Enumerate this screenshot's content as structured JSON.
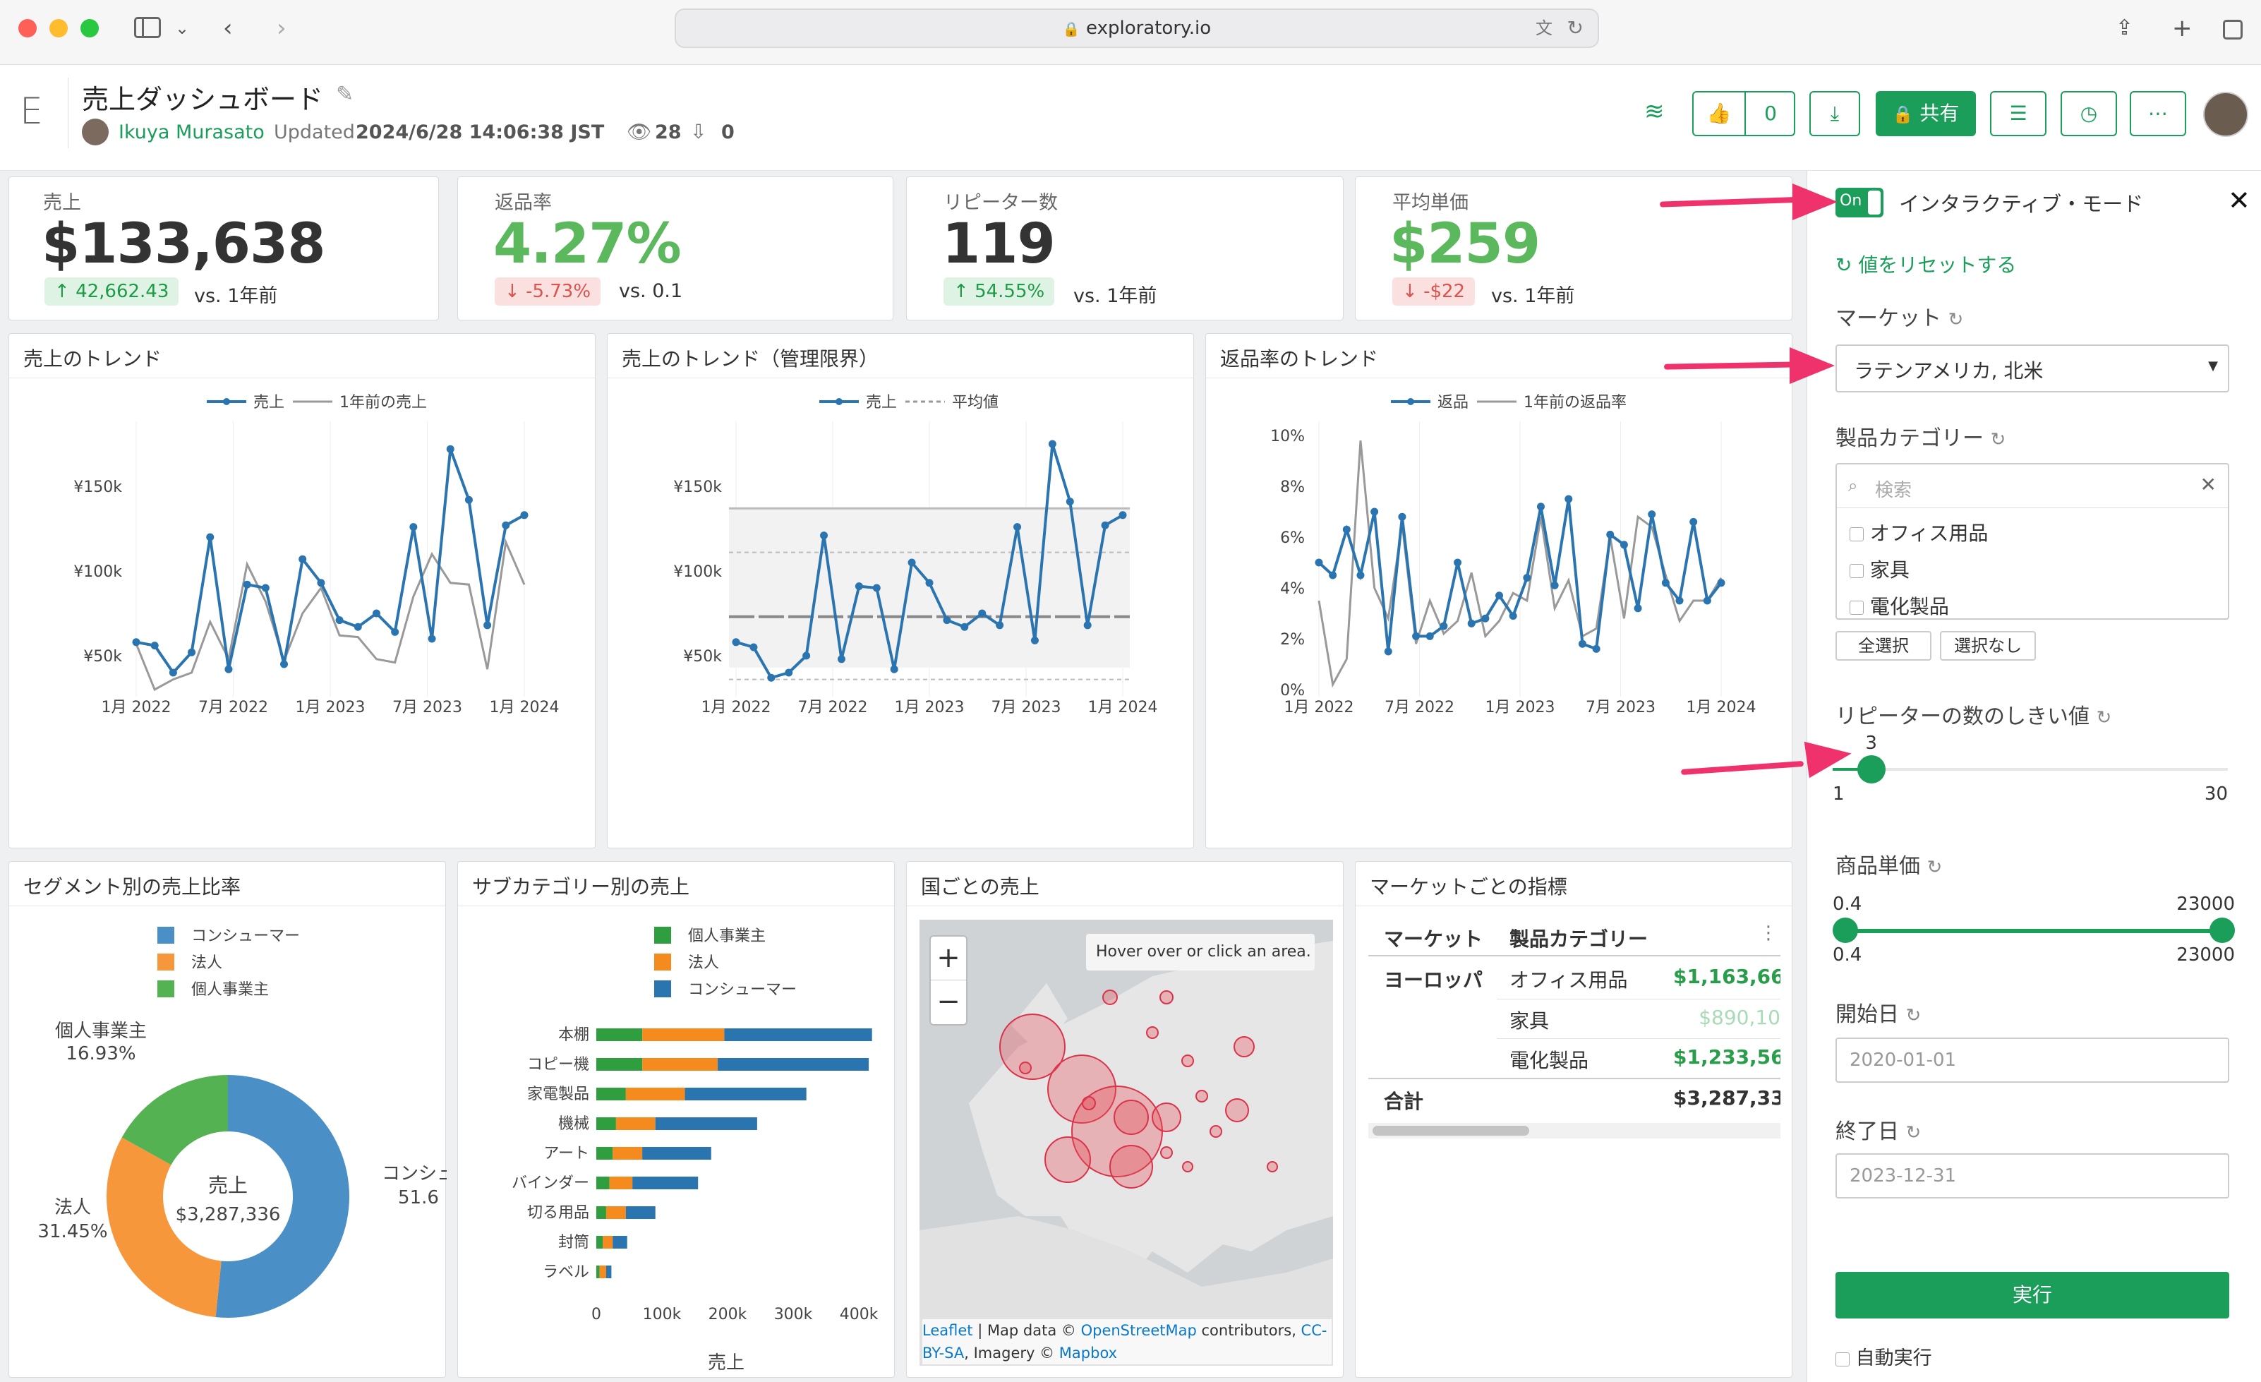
{
  "browser": {
    "url": "exploratory.io"
  },
  "header": {
    "logo": "E",
    "title": "売上ダッシュボード",
    "author": "Ikuya Murasato",
    "updated_label": "Updated",
    "updated_value": "2024/6/28 14:06:38 JST",
    "views": "28",
    "downloads": "0",
    "likes": "0",
    "share_label": "共有",
    "accent": "#1a9e5a"
  },
  "kpis": [
    {
      "label": "売上",
      "value": "$133,638",
      "delta": "42,662.43",
      "direction": "up",
      "vs": "vs. 1年前",
      "color": "#333333"
    },
    {
      "label": "返品率",
      "value": "4.27%",
      "delta": "-5.73%",
      "direction": "down",
      "vs": "vs. 0.1",
      "color": "#5cb85c"
    },
    {
      "label": "リピーター数",
      "value": "119",
      "delta": "54.55%",
      "direction": "up",
      "vs": "vs. 1年前",
      "color": "#333333"
    },
    {
      "label": "平均単価",
      "value": "$259",
      "delta": "-$22",
      "direction": "down",
      "vs": "vs. 1年前",
      "color": "#5cb85c"
    }
  ],
  "charts": {
    "trend1": {
      "title": "売上のトレンド",
      "legend": [
        "売上",
        "1年前の売上"
      ],
      "yticks": [
        "¥150k",
        "¥100k",
        "¥50k"
      ],
      "xticks": [
        "1月 2022",
        "7月 2022",
        "1月 2023",
        "7月 2023",
        "1月 2024"
      ]
    },
    "trend2": {
      "title": "売上のトレンド（管理限界）",
      "legend": [
        "売上",
        "平均値"
      ],
      "yticks": [
        "¥150k",
        "¥100k",
        "¥50k"
      ],
      "xticks": [
        "1月 2022",
        "7月 2022",
        "1月 2023",
        "7月 2023",
        "1月 2024"
      ]
    },
    "trend3": {
      "title": "返品率のトレンド",
      "legend": [
        "返品",
        "1年前の返品率"
      ],
      "yticks": [
        "10%",
        "8%",
        "6%",
        "4%",
        "2%",
        "0%"
      ],
      "xticks": [
        "1月 2022",
        "7月 2022",
        "1月 2023",
        "7月 2023",
        "1月 2024"
      ]
    },
    "donut": {
      "title": "セグメント別の売上比率",
      "legend": [
        "コンシューマー",
        "法人",
        "個人事業主"
      ],
      "center_label": "売上",
      "center_value": "$3,287,336",
      "labels": [
        {
          "name": "個人事業主",
          "pct": "16.93%"
        },
        {
          "name": "法人",
          "pct": "31.45%"
        },
        {
          "name": "コンシュ",
          "pct": "51.6"
        }
      ]
    },
    "subcat": {
      "title": "サブカテゴリー別の売上",
      "legend": [
        "個人事業主",
        "法人",
        "コンシューマー"
      ],
      "xlabel": "売上",
      "xticks": [
        "0",
        "100k",
        "200k",
        "300k",
        "400k"
      ]
    },
    "map": {
      "title": "国ごとの売上",
      "hover": "Hover over or click an area.",
      "zoom_in": "+",
      "zoom_out": "−",
      "attrib_1": "Leaflet",
      "attrib_2": " | Map data © ",
      "attrib_3": "OpenStreetMap",
      "attrib_4": " contributors, ",
      "attrib_5": "CC-BY-SA",
      "attrib_6": ", Imagery © ",
      "attrib_7": "Mapbox"
    },
    "table": {
      "title": "マーケットごとの指標",
      "headers": [
        "マーケット",
        "製品カテゴリー"
      ],
      "market": "ヨーロッパ",
      "rows": [
        {
          "cat": "オフィス用品",
          "val": "$1,163,66"
        },
        {
          "cat": "家具",
          "val": "$890,10"
        },
        {
          "cat": "電化製品",
          "val": "$1,233,56"
        }
      ],
      "total_label": "合計",
      "total_val": "$3,287,33"
    }
  },
  "chart_data": [
    {
      "type": "line",
      "title": "売上のトレンド",
      "x_range": [
        "2022-01",
        "2024-01"
      ],
      "ylim": [
        30000,
        180000
      ],
      "series": [
        {
          "name": "売上",
          "values": [
            58000,
            56000,
            40000,
            52000,
            120000,
            42000,
            92000,
            90000,
            45000,
            107000,
            93000,
            71000,
            67000,
            75000,
            64000,
            126000,
            60000,
            172000,
            142000,
            68000,
            127000,
            133000
          ]
        },
        {
          "name": "1年前の売上",
          "values": [
            57000,
            30000,
            36000,
            40000,
            70000,
            48000,
            104000,
            82000,
            47000,
            75000,
            90000,
            62000,
            61000,
            48000,
            46000,
            85000,
            110000,
            93000,
            92000,
            42000,
            117000,
            92000
          ]
        }
      ]
    },
    {
      "type": "line",
      "title": "売上のトレンド（管理限界）",
      "x_range": [
        "2022-01",
        "2024-01"
      ],
      "ylim": [
        30000,
        180000
      ],
      "series": [
        {
          "name": "売上",
          "values": [
            58000,
            55000,
            37000,
            40000,
            50000,
            121000,
            48000,
            91000,
            90000,
            42000,
            105000,
            93000,
            71000,
            67000,
            75000,
            68000,
            126000,
            59000,
            175000,
            141000,
            68000,
            127000,
            133000
          ]
        },
        {
          "name": "平均値",
          "values": [
            73000
          ]
        }
      ]
    },
    {
      "type": "line",
      "title": "返品率のトレンド",
      "x_range": [
        "2022-01",
        "2024-01"
      ],
      "ylim": [
        0,
        10
      ],
      "series": [
        {
          "name": "返品",
          "values": [
            5.0,
            4.5,
            6.3,
            4.5,
            7.0,
            1.5,
            6.8,
            2.1,
            2.1,
            2.5,
            5.0,
            2.6,
            2.8,
            3.7,
            2.9,
            4.4,
            7.2,
            4.1,
            7.5,
            1.8,
            1.6,
            6.1,
            5.7,
            3.2,
            6.9,
            4.2,
            3.5,
            6.6,
            3.5,
            4.2
          ]
        },
        {
          "name": "1年前の返品率",
          "values": [
            3.5,
            0.2,
            1.2,
            9.8,
            4.0,
            2.8,
            6.5,
            1.8,
            3.5,
            2.2,
            2.7,
            4.6,
            2.1,
            2.7,
            3.8,
            3.5,
            6.8,
            3.2,
            4.3,
            2.1,
            2.4,
            6.0,
            2.8,
            6.8,
            6.4,
            4.5,
            2.7,
            3.5,
            3.5,
            4.4
          ]
        }
      ]
    },
    {
      "type": "pie",
      "title": "セグメント別の売上比率",
      "categories": [
        "コンシューマー",
        "法人",
        "個人事業主"
      ],
      "values": [
        51.6,
        31.45,
        16.93
      ]
    },
    {
      "type": "bar",
      "title": "サブカテゴリー別の売上",
      "xlabel": "売上",
      "xlim": [
        0,
        430000
      ],
      "categories": [
        "本棚",
        "コピー機",
        "家電製品",
        "機械",
        "アート",
        "バインダー",
        "切る用品",
        "封筒",
        "ラベル"
      ],
      "series": [
        {
          "name": "個人事業主",
          "values": [
            70000,
            70000,
            45000,
            30000,
            25000,
            20000,
            15000,
            10000,
            5000
          ]
        },
        {
          "name": "法人",
          "values": [
            125000,
            115000,
            90000,
            60000,
            45000,
            35000,
            30000,
            15000,
            10000
          ]
        },
        {
          "name": "コンシューマー",
          "values": [
            225000,
            230000,
            185000,
            155000,
            105000,
            100000,
            45000,
            22000,
            8000
          ]
        }
      ]
    }
  ],
  "panel": {
    "toggle": "On",
    "title": "インタラクティブ・モード",
    "reset": "値をリセットする",
    "market_label": "マーケット",
    "market_value": "ラテンアメリカ, 北米",
    "category_label": "製品カテゴリー",
    "search_placeholder": "検索",
    "categories": [
      "オフィス用品",
      "家具",
      "電化製品"
    ],
    "select_all": "全選択",
    "select_none": "選択なし",
    "threshold_label": "リピーターの数のしきい値",
    "threshold_value": "3",
    "threshold_min": "1",
    "threshold_max": "30",
    "threshold_fraction": 0.069,
    "price_label": "商品単価",
    "price_min": "0.4",
    "price_max": "23000",
    "start_label": "開始日",
    "start_value": "2020-01-01",
    "end_label": "終了日",
    "end_value": "2023-12-31",
    "run": "実行",
    "auto_run": "自動実行"
  }
}
